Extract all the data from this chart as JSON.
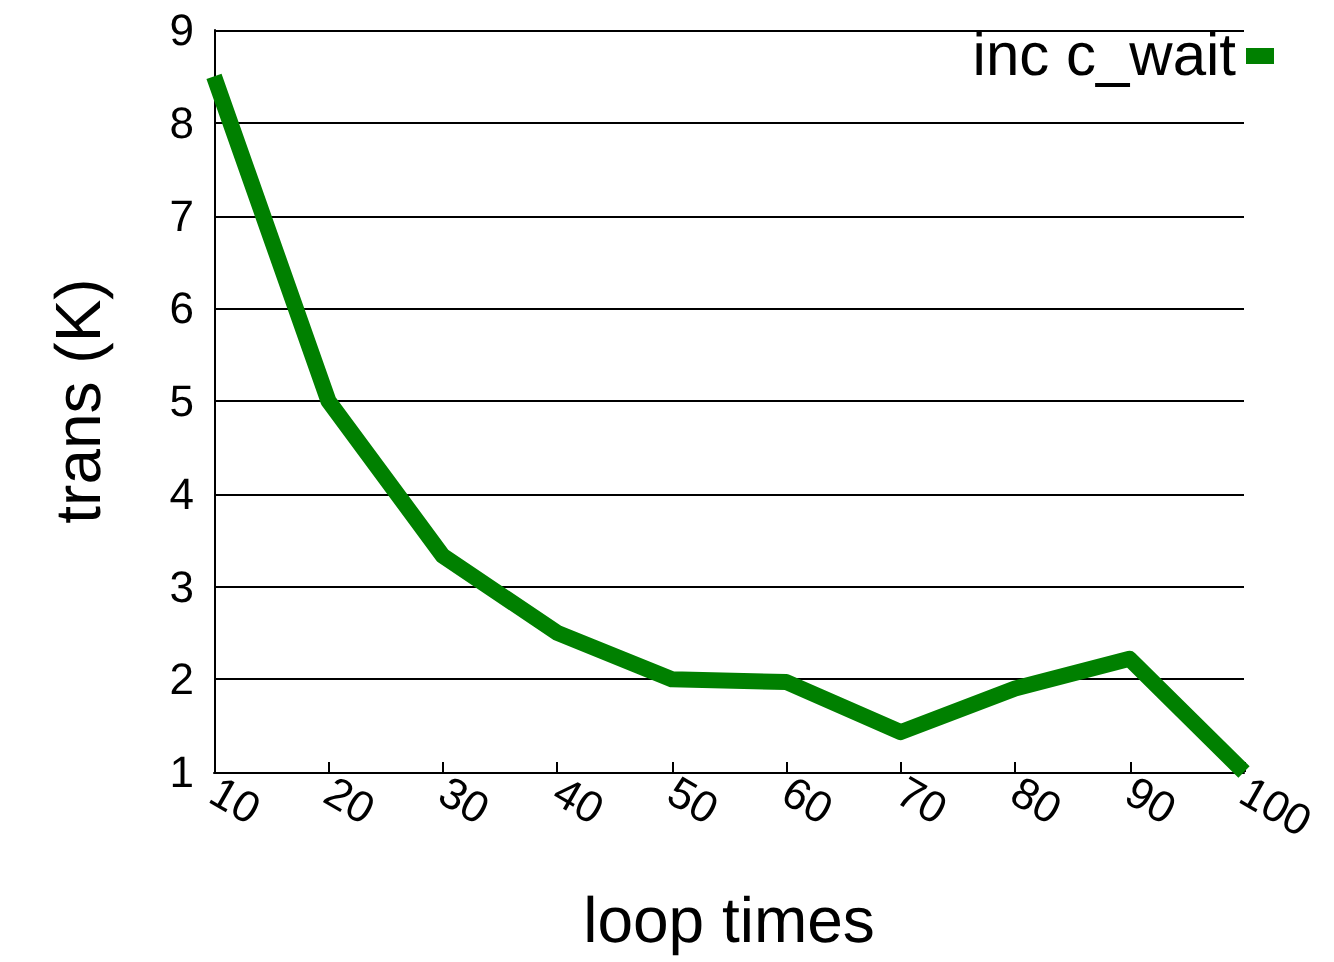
{
  "chart_data": {
    "type": "line",
    "xlabel": "loop times",
    "ylabel": "trans (K)",
    "categories": [
      "10",
      "20",
      "30",
      "40",
      "50",
      "60",
      "70",
      "80",
      "90",
      "100"
    ],
    "series": [
      {
        "name": "inc c_wait",
        "color": "#008000",
        "values": [
          8.5,
          5.0,
          3.33,
          2.5,
          2.0,
          1.97,
          1.43,
          1.9,
          2.22,
          1.0
        ]
      }
    ],
    "ylim": [
      1,
      9
    ],
    "yticks": [
      1,
      2,
      3,
      4,
      5,
      6,
      7,
      8,
      9
    ],
    "grid": "y",
    "legend": "top right",
    "marker": "none",
    "line_style": "solid"
  }
}
